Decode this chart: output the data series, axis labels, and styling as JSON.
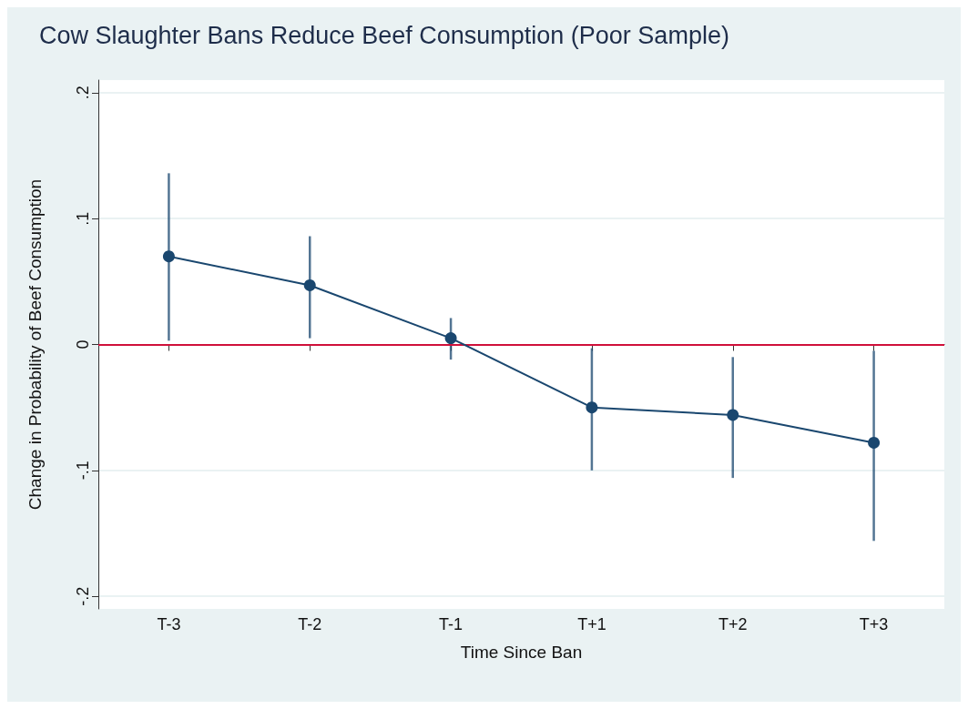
{
  "chart_data": {
    "type": "line",
    "title": "Cow Slaughter Bans Reduce Beef Consumption (Poor Sample)",
    "xlabel": "Time Since Ban",
    "ylabel": "Change in Probability of Beef Consumption",
    "categories": [
      "T-3",
      "T-2",
      "T-1",
      "T+1",
      "T+2",
      "T+3"
    ],
    "series": [
      {
        "color": "#1a476f",
        "values": [
          0.07,
          0.047,
          0.005,
          -0.05,
          -0.056,
          -0.078
        ],
        "errors": [
          [
            0.003,
            0.136
          ],
          [
            0.005,
            0.086
          ],
          [
            -0.012,
            0.021
          ],
          [
            -0.1,
            -0.003
          ],
          [
            -0.106,
            -0.01
          ],
          [
            -0.156,
            -0.005
          ]
        ]
      }
    ],
    "ylim": [
      -0.21,
      0.21
    ],
    "yticks": [
      {
        "value": -0.2,
        "label": "-.2"
      },
      {
        "value": -0.1,
        "label": "-.1"
      },
      {
        "value": 0,
        "label": "0"
      },
      {
        "value": 0.1,
        "label": ".1"
      },
      {
        "value": 0.2,
        "label": ".2"
      }
    ],
    "grid": "y",
    "marker": "circle",
    "line_style": "solid",
    "ref_lines": [
      {
        "axis": "y",
        "value": 0,
        "color": "#d0103a"
      }
    ]
  }
}
